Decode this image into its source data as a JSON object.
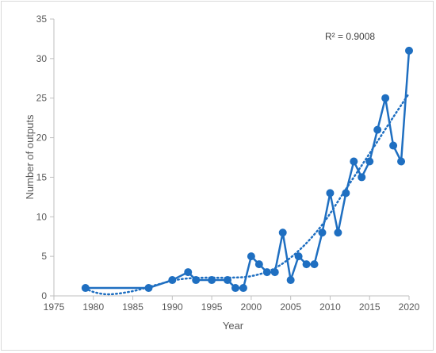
{
  "chart_data": {
    "type": "line",
    "xlabel": "Year",
    "ylabel": "Number of outputs",
    "xlim": [
      1975,
      2020
    ],
    "ylim": [
      0,
      35
    ],
    "xticks": [
      1975,
      1980,
      1985,
      1990,
      1995,
      2000,
      2005,
      2010,
      2015,
      2020
    ],
    "yticks": [
      0,
      5,
      10,
      15,
      20,
      25,
      30,
      35
    ],
    "grid": false,
    "legend": "none",
    "annotation": "R² = 0.9008",
    "series": [
      {
        "color": "#1f6fc1",
        "marker": "circle",
        "points": [
          {
            "x": 1979,
            "y": 1
          },
          {
            "x": 1987,
            "y": 1
          },
          {
            "x": 1990,
            "y": 2
          },
          {
            "x": 1992,
            "y": 3
          },
          {
            "x": 1993,
            "y": 2
          },
          {
            "x": 1995,
            "y": 2
          },
          {
            "x": 1997,
            "y": 2
          },
          {
            "x": 1998,
            "y": 1
          },
          {
            "x": 1999,
            "y": 1
          },
          {
            "x": 2000,
            "y": 5
          },
          {
            "x": 2001,
            "y": 4
          },
          {
            "x": 2002,
            "y": 3
          },
          {
            "x": 2003,
            "y": 3
          },
          {
            "x": 2004,
            "y": 8
          },
          {
            "x": 2005,
            "y": 2
          },
          {
            "x": 2006,
            "y": 5
          },
          {
            "x": 2007,
            "y": 4
          },
          {
            "x": 2008,
            "y": 4
          },
          {
            "x": 2009,
            "y": 8
          },
          {
            "x": 2010,
            "y": 13
          },
          {
            "x": 2011,
            "y": 8
          },
          {
            "x": 2012,
            "y": 13
          },
          {
            "x": 2013,
            "y": 17
          },
          {
            "x": 2014,
            "y": 15
          },
          {
            "x": 2015,
            "y": 17
          },
          {
            "x": 2016,
            "y": 21
          },
          {
            "x": 2017,
            "y": 25
          },
          {
            "x": 2018,
            "y": 19
          },
          {
            "x": 2019,
            "y": 17
          },
          {
            "x": 2020,
            "y": 31
          }
        ]
      }
    ],
    "trendline": {
      "type": "polynomial",
      "style": "dotted",
      "color": "#1f6fc1",
      "points": [
        {
          "x": 1979,
          "y": 1.0
        },
        {
          "x": 1980,
          "y": 0.5
        },
        {
          "x": 1982,
          "y": 0.2
        },
        {
          "x": 1985,
          "y": 0.6
        },
        {
          "x": 1988,
          "y": 1.4
        },
        {
          "x": 1991,
          "y": 2.1
        },
        {
          "x": 1994,
          "y": 2.3
        },
        {
          "x": 1997,
          "y": 2.3
        },
        {
          "x": 2000,
          "y": 2.5
        },
        {
          "x": 2003,
          "y": 3.5
        },
        {
          "x": 2006,
          "y": 5.7
        },
        {
          "x": 2009,
          "y": 9.0
        },
        {
          "x": 2012,
          "y": 13.5
        },
        {
          "x": 2015,
          "y": 18.0
        },
        {
          "x": 2018,
          "y": 22.6
        },
        {
          "x": 2020,
          "y": 25.6
        }
      ]
    }
  }
}
